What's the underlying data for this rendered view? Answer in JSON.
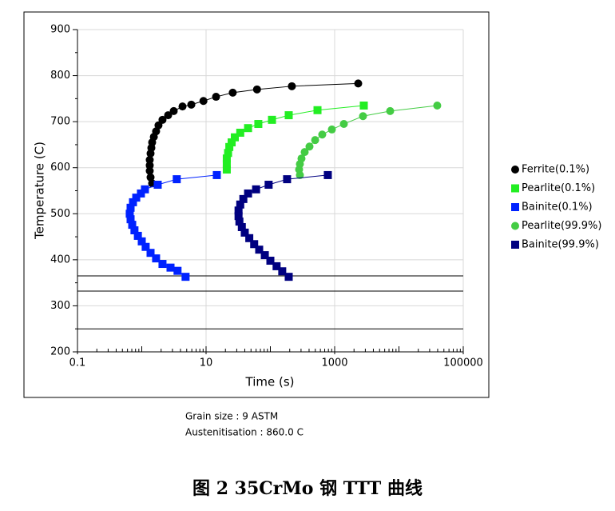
{
  "chart_data": {
    "type": "line",
    "xscale": "log",
    "xlabel": "Time (s)",
    "ylabel": "Temperature (C)",
    "xlim": [
      0.1,
      100000
    ],
    "xticks": [
      0.1,
      10,
      1000,
      100000
    ],
    "ylim": [
      200,
      900
    ],
    "yticks": [
      200,
      300,
      400,
      500,
      600,
      700,
      800,
      900
    ],
    "grid": true,
    "legend": "right",
    "hlines": [
      365,
      332,
      250
    ],
    "series": [
      {
        "name": "Ferrite(0.1%)",
        "color": "#000000",
        "marker": "circle",
        "x": [
          1.45,
          1.37,
          1.33,
          1.33,
          1.33,
          1.37,
          1.41,
          1.45,
          1.54,
          1.67,
          1.82,
          2.1,
          2.57,
          3.14,
          4.3,
          5.9,
          9.1,
          14.3,
          26,
          62,
          216,
          2325
        ],
        "values": [
          566,
          579,
          593,
          605,
          617,
          631,
          643,
          655,
          667,
          679,
          692,
          704,
          714,
          723,
          733,
          737,
          745,
          754,
          763,
          770,
          777,
          783
        ]
      },
      {
        "name": "Pearlite(0.1%)",
        "color": "#22ee22",
        "marker": "square",
        "x": [
          21,
          21,
          21,
          22,
          23,
          25,
          28,
          34,
          45,
          65,
          106,
          193,
          541,
          2840
        ],
        "values": [
          596,
          608,
          620,
          632,
          645,
          655,
          666,
          676,
          686,
          695,
          704,
          714,
          725,
          735
        ]
      },
      {
        "name": "Bainite(0.1%)",
        "color": "#0022ff",
        "marker": "square",
        "x": [
          14.7,
          3.5,
          1.77,
          1.12,
          0.97,
          0.82,
          0.73,
          0.67,
          0.65,
          0.67,
          0.71,
          0.77,
          0.87,
          1.0,
          1.15,
          1.37,
          1.67,
          2.1,
          2.8,
          3.6,
          4.8
        ],
        "values": [
          584,
          575,
          563,
          553,
          544,
          535,
          525,
          513,
          500,
          488,
          476,
          464,
          452,
          440,
          428,
          415,
          403,
          391,
          383,
          376,
          363
        ]
      },
      {
        "name": "Pearlite(99.9%)",
        "color": "#44cc44",
        "marker": "circle",
        "x": [
          288,
          280,
          288,
          305,
          342,
          406,
          497,
          641,
          905,
          1390,
          2760,
          7300,
          39400
        ],
        "values": [
          584,
          596,
          608,
          620,
          634,
          646,
          660,
          672,
          683,
          695,
          712,
          723,
          735
        ]
      },
      {
        "name": "Bainite(99.9%)",
        "color": "#000080",
        "marker": "square",
        "x": [
          783,
          182,
          94,
          60,
          45,
          38,
          34,
          32,
          32,
          33,
          36,
          40,
          47,
          56,
          67,
          82,
          100,
          125,
          153,
          193
        ],
        "values": [
          584,
          575,
          563,
          553,
          544,
          532,
          520,
          507,
          495,
          483,
          471,
          459,
          447,
          434,
          422,
          410,
          398,
          386,
          375,
          363
        ]
      }
    ],
    "notes": [
      "Grain size : 9 ASTM",
      "Austenitisation : 860.0 C"
    ],
    "caption": "图 2 35CrMo 钢 TTT 曲线"
  }
}
